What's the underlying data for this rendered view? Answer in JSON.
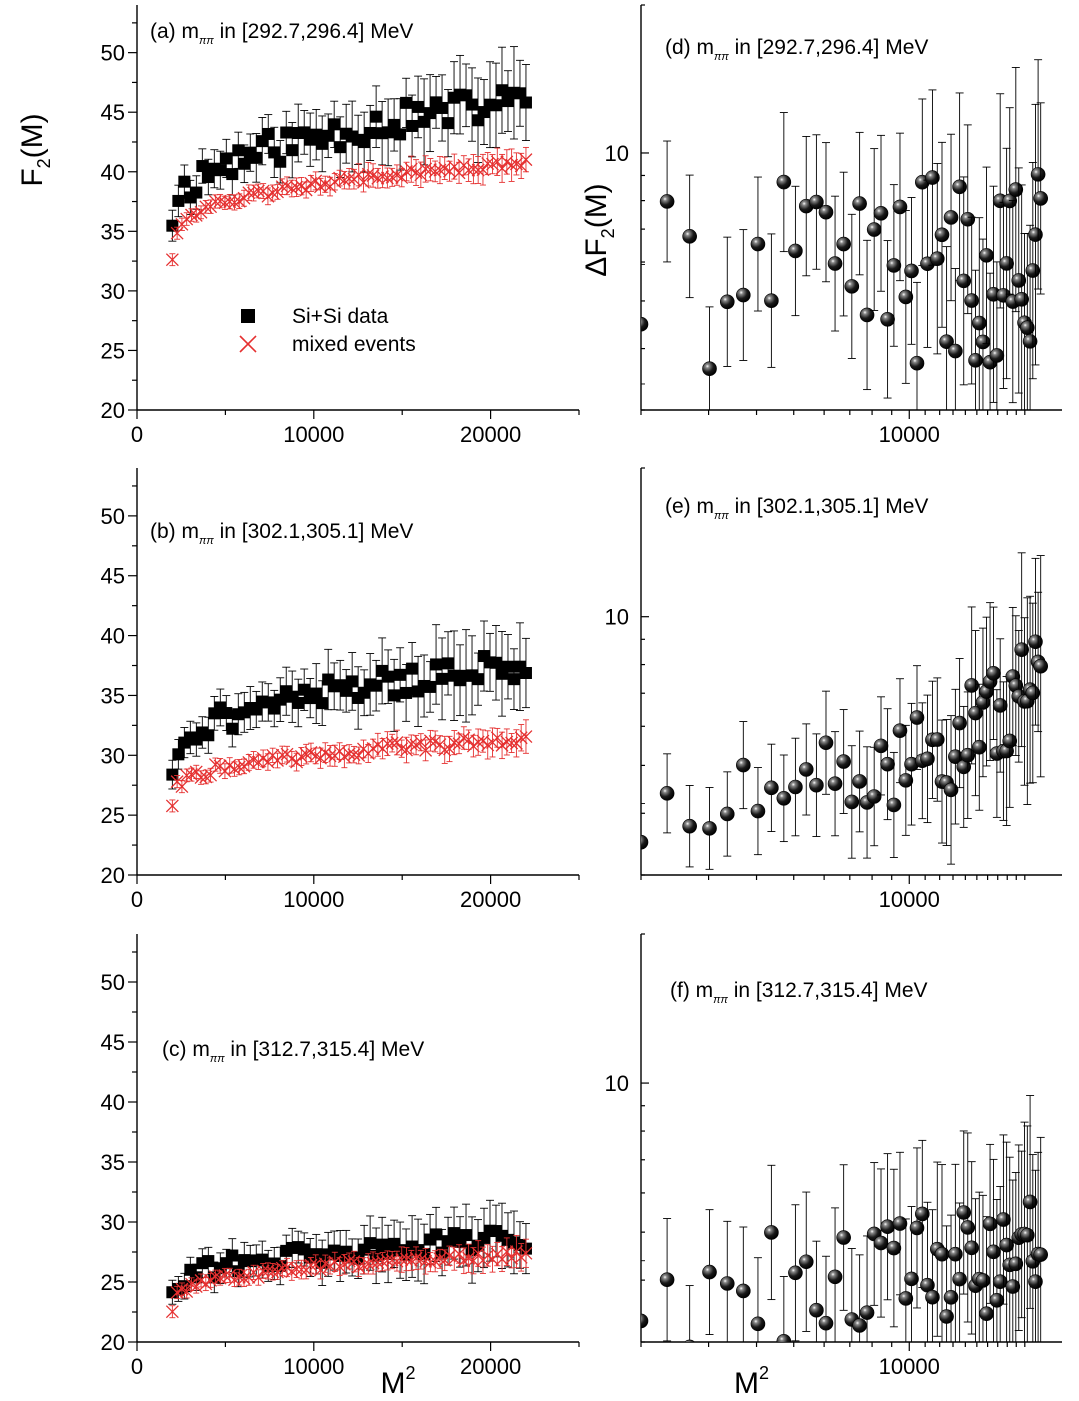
{
  "page": {
    "title": ""
  },
  "chart_data": [
    {
      "id": "a",
      "type": "scatter",
      "yscale": "linear",
      "label_prefix": "(a)  m",
      "label_sub": "ππ",
      "label_suffix": "  in [292.7,296.4] MeV",
      "ylabel": "F2(M)",
      "ylabel_main": "F",
      "ylabel_sub": "2",
      "ylabel_tail": "(M)",
      "xlabel": "",
      "xlim": [
        0,
        25000
      ],
      "ylim": [
        20,
        54
      ],
      "xticks": [
        0,
        10000,
        20000
      ],
      "yticks": [
        20,
        25,
        30,
        35,
        40,
        45,
        50
      ],
      "grid": false,
      "legend_position": "lower-left",
      "legend": [
        {
          "name": "Si+Si data",
          "marker": "filled-square",
          "color": "#000000"
        },
        {
          "name": "mixed events",
          "marker": "x",
          "color": "#e53030"
        }
      ],
      "series": [
        {
          "name": "Si+Si data",
          "marker": "square",
          "color": "#000000",
          "data": {
            "x0": 2000,
            "x1": 22000,
            "y0": 36.2,
            "y1": 46.0,
            "curve": 0.42,
            "noise": 1.4,
            "err": 1.3,
            "errGrow": 2.2,
            "n": 60,
            "seed": 11
          }
        },
        {
          "name": "mixed events",
          "marker": "x",
          "color": "#e53030",
          "data": {
            "x0": 2000,
            "x1": 22000,
            "y0": 32.8,
            "y1": 40.7,
            "curve": 0.28,
            "noise": 0.35,
            "err": 0.5,
            "errGrow": 0.6,
            "n": 75,
            "seed": 12
          }
        }
      ]
    },
    {
      "id": "b",
      "type": "scatter",
      "yscale": "linear",
      "label_prefix": "(b)  m",
      "label_sub": "ππ",
      "label_suffix": "  in [302.1,305.1] MeV",
      "ylabel": "",
      "xlabel": "",
      "xlim": [
        0,
        25000
      ],
      "ylim": [
        20,
        54
      ],
      "xticks": [
        0,
        10000,
        20000
      ],
      "yticks": [
        20,
        25,
        30,
        35,
        40,
        45,
        50
      ],
      "grid": false,
      "series": [
        {
          "name": "Si+Si data",
          "marker": "square",
          "color": "#000000",
          "data": {
            "x0": 2000,
            "x1": 22000,
            "y0": 29.0,
            "y1": 37.5,
            "curve": 0.38,
            "noise": 1.2,
            "err": 1.2,
            "errGrow": 2.2,
            "n": 60,
            "seed": 21
          }
        },
        {
          "name": "mixed events",
          "marker": "x",
          "color": "#e53030",
          "data": {
            "x0": 2000,
            "x1": 22000,
            "y0": 26.0,
            "y1": 31.3,
            "curve": 0.3,
            "noise": 0.45,
            "err": 0.5,
            "errGrow": 0.6,
            "n": 75,
            "seed": 22
          }
        }
      ]
    },
    {
      "id": "c",
      "type": "scatter",
      "yscale": "linear",
      "label_prefix": "(c)  m",
      "label_sub": "ππ",
      "label_suffix": "  in [312.7,315.4] MeV",
      "ylabel": "",
      "xlabel": "M2",
      "xlabel_main": "M",
      "xlabel_sup": "2",
      "xlim": [
        0,
        25000
      ],
      "ylim": [
        20,
        54
      ],
      "xticks": [
        0,
        10000,
        20000
      ],
      "yticks": [
        20,
        25,
        30,
        35,
        40,
        45,
        50
      ],
      "grid": false,
      "series": [
        {
          "name": "Si+Si data",
          "marker": "square",
          "color": "#000000",
          "data": {
            "x0": 2000,
            "x1": 22000,
            "y0": 24.6,
            "y1": 28.6,
            "curve": 0.45,
            "noise": 0.9,
            "err": 1.0,
            "errGrow": 1.6,
            "n": 60,
            "seed": 31
          }
        },
        {
          "name": "mixed events",
          "marker": "x",
          "color": "#e53030",
          "data": {
            "x0": 2000,
            "x1": 22000,
            "y0": 22.7,
            "y1": 27.3,
            "curve": 0.3,
            "noise": 0.35,
            "err": 0.5,
            "errGrow": 0.6,
            "n": 75,
            "seed": 32
          }
        }
      ]
    },
    {
      "id": "d",
      "type": "scatter",
      "yscale": "log",
      "xscale": "log",
      "label_prefix": "(d)  m",
      "label_sub": "ππ",
      "label_suffix": "  in [292.7,296.4] MeV",
      "ylabel": "ΔF2(M)",
      "ylabel_main": "ΔF",
      "ylabel_sub": "2",
      "ylabel_tail": "(M)",
      "xlabel": "",
      "xlim": [
        2000,
        25000
      ],
      "ylim": [
        3,
        20
      ],
      "xticks": [
        10000
      ],
      "yticks": [
        10
      ],
      "grid": false,
      "series": [
        {
          "name": "ΔF2",
          "marker": "sphere",
          "color": "#000000",
          "data": {
            "x0": 2000,
            "x1": 22000,
            "y0": 5.6,
            "y1": 5.9,
            "spread": 0.28,
            "err": 0.28,
            "errGrow": 0.25,
            "n": 60,
            "seed": 41
          }
        }
      ]
    },
    {
      "id": "e",
      "type": "scatter",
      "yscale": "log",
      "xscale": "log",
      "label_prefix": "(e)  m",
      "label_sub": "ππ",
      "label_suffix": "  in [302.1,305.1] MeV",
      "ylabel": "",
      "xlabel": "",
      "xlim": [
        2000,
        25000
      ],
      "ylim": [
        3,
        20
      ],
      "xticks": [
        10000
      ],
      "yticks": [
        10
      ],
      "grid": false,
      "series": [
        {
          "name": "ΔF2",
          "marker": "sphere",
          "color": "#000000",
          "data": {
            "x0": 2000,
            "x1": 22000,
            "y0": 3.9,
            "y1": 7.4,
            "spread": 0.14,
            "err": 0.18,
            "errGrow": 0.24,
            "n": 60,
            "seed": 51
          }
        }
      ]
    },
    {
      "id": "f",
      "type": "scatter",
      "yscale": "log",
      "xscale": "log",
      "label_prefix": "(f)  m",
      "label_sub": "ππ",
      "label_suffix": "  in [312.7,315.4] MeV",
      "ylabel": "",
      "xlabel": "M2",
      "xlabel_main": "M",
      "xlabel_sup": "2",
      "xlim": [
        2000,
        25000
      ],
      "ylim": [
        3,
        20
      ],
      "xticks": [
        10000
      ],
      "yticks": [
        10
      ],
      "grid": false,
      "series": [
        {
          "name": "ΔF2",
          "marker": "sphere",
          "color": "#000000",
          "data": {
            "x0": 2000,
            "x1": 22000,
            "y0": 3.8,
            "y1": 4.6,
            "spread": 0.18,
            "err": 0.28,
            "errGrow": 0.2,
            "n": 60,
            "seed": 61
          }
        }
      ]
    }
  ]
}
